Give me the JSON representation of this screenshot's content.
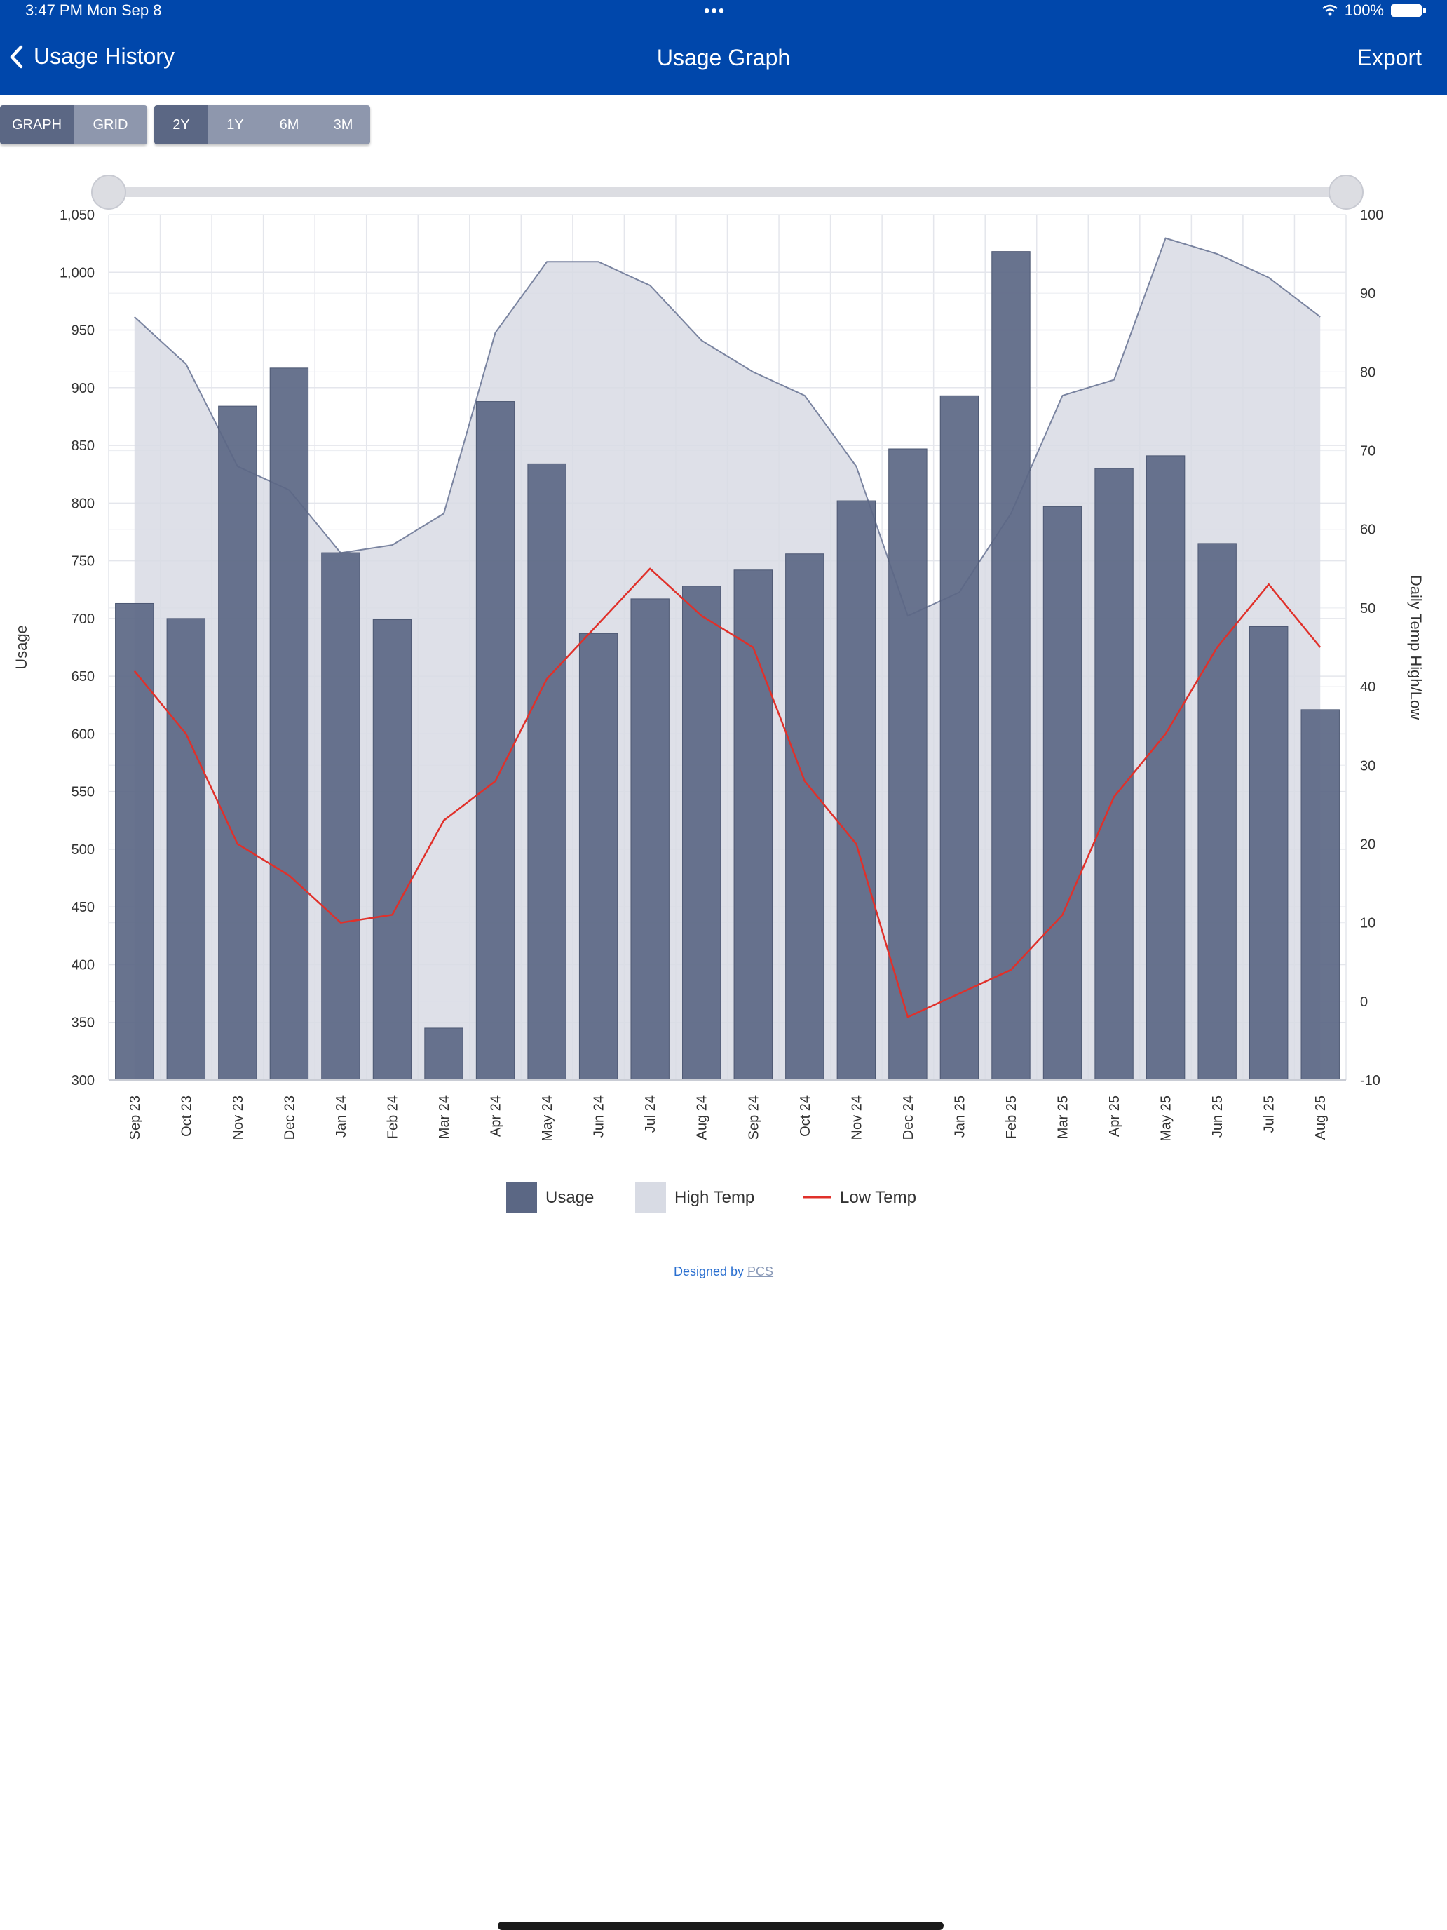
{
  "status_bar": {
    "time": "3:47 PM   Mon Sep 8",
    "dots": "•••",
    "battery": "100%"
  },
  "nav": {
    "back_label": "Usage History",
    "title": "Usage Graph",
    "export_label": "Export"
  },
  "view_toggle": {
    "options": [
      "GRAPH",
      "GRID"
    ],
    "selected": "GRAPH"
  },
  "range_toggle": {
    "options": [
      "2Y",
      "1Y",
      "6M",
      "3M"
    ],
    "selected": "2Y"
  },
  "colors": {
    "header": "#0047AB",
    "bar": "#5b6784",
    "high_temp_fill": "#d8dbe4",
    "high_temp_line": "#7a84a0",
    "low_temp_line": "#e0302a"
  },
  "chart_data": {
    "type": "bar",
    "categories": [
      "Sep 23",
      "Oct 23",
      "Nov 23",
      "Dec 23",
      "Jan 24",
      "Feb 24",
      "Mar 24",
      "Apr 24",
      "May 24",
      "Jun 24",
      "Jul 24",
      "Aug 24",
      "Sep 24",
      "Oct 24",
      "Nov 24",
      "Dec 24",
      "Jan 25",
      "Feb 25",
      "Mar 25",
      "Apr 25",
      "May 25",
      "Jun 25",
      "Jul 25",
      "Aug 25"
    ],
    "series": [
      {
        "name": "Usage",
        "type": "bar",
        "axis": "left",
        "values": [
          713,
          700,
          884,
          917,
          757,
          699,
          345,
          888,
          834,
          687,
          717,
          728,
          742,
          756,
          802,
          847,
          893,
          1018,
          797,
          830,
          841,
          765,
          693,
          621
        ]
      },
      {
        "name": "High Temp",
        "type": "area",
        "axis": "right",
        "values": [
          87,
          81,
          68,
          65,
          57,
          58,
          62,
          85,
          94,
          94,
          91,
          84,
          80,
          77,
          68,
          49,
          52,
          62,
          77,
          79,
          97,
          95,
          92,
          87
        ]
      },
      {
        "name": "Low Temp",
        "type": "line",
        "axis": "right",
        "values": [
          42,
          34,
          20,
          16,
          10,
          11,
          23,
          28,
          41,
          48,
          55,
          49,
          45,
          28,
          20,
          -2,
          1,
          4,
          11,
          26,
          34,
          45,
          53,
          45
        ]
      }
    ],
    "ylabel": "Usage",
    "y2label": "Daily Temp High/Low",
    "ylim": [
      300,
      1050
    ],
    "yticks": [
      "300",
      "350",
      "400",
      "450",
      "500",
      "550",
      "600",
      "650",
      "700",
      "750",
      "800",
      "850",
      "900",
      "950",
      "1,000",
      "1,050"
    ],
    "y2lim": [
      -10,
      100
    ],
    "y2ticks": [
      "-10",
      "0",
      "10",
      "20",
      "30",
      "40",
      "50",
      "60",
      "70",
      "80",
      "90",
      "100"
    ],
    "grid": true,
    "legend_position": "bottom"
  },
  "credit": {
    "prefix": "Designed by ",
    "link": "PCS"
  }
}
